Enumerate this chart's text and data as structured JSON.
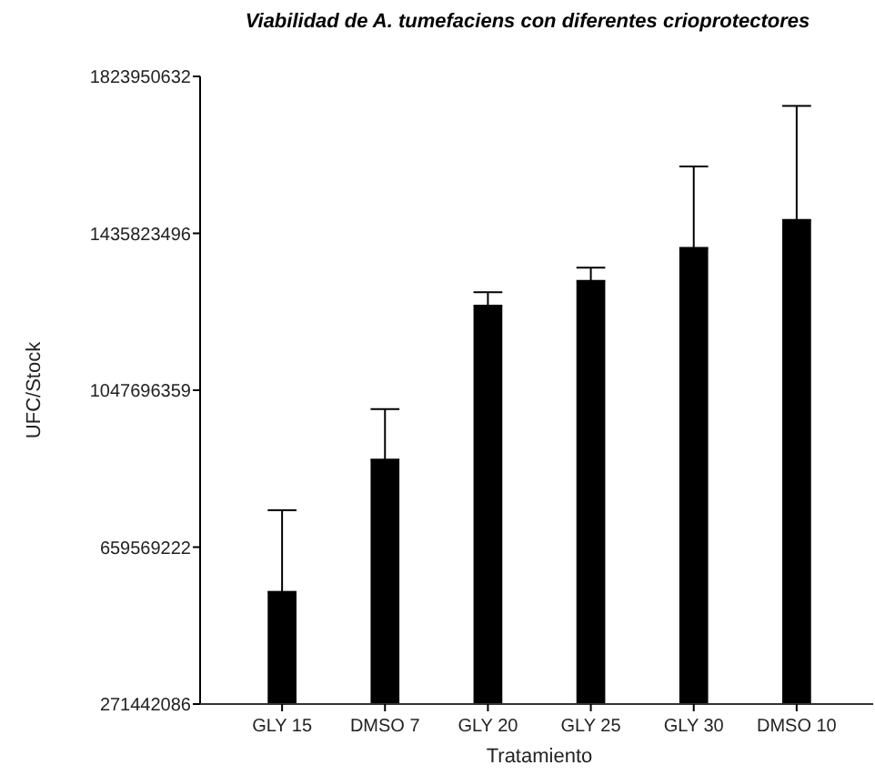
{
  "chart_data": {
    "type": "bar",
    "title": "Viabilidad de A. tumefaciens con diferentes crioprotectores",
    "xlabel": "Tratamiento",
    "ylabel": "UFC/Stock",
    "categories": [
      "GLY 15",
      "DMSO 7",
      "GLY 20",
      "GLY 25",
      "GLY 30",
      "DMSO 10"
    ],
    "values": [
      549000000,
      876000000,
      1257000000,
      1318000000,
      1400000000,
      1469000000
    ],
    "errors": [
      [
        549000000,
        751000000
      ],
      [
        876000000,
        1001000000
      ],
      [
        1257000000,
        1290000000
      ],
      [
        1318000000,
        1351000000
      ],
      [
        1400000000,
        1601000000
      ],
      [
        1469000000,
        1751000000
      ]
    ],
    "color": "#000000",
    "ylim": [
      271442086,
      1823950632
    ],
    "yticks": [
      271442086,
      659569222,
      1047696359,
      1435823496,
      1823950632
    ],
    "grid": false
  }
}
